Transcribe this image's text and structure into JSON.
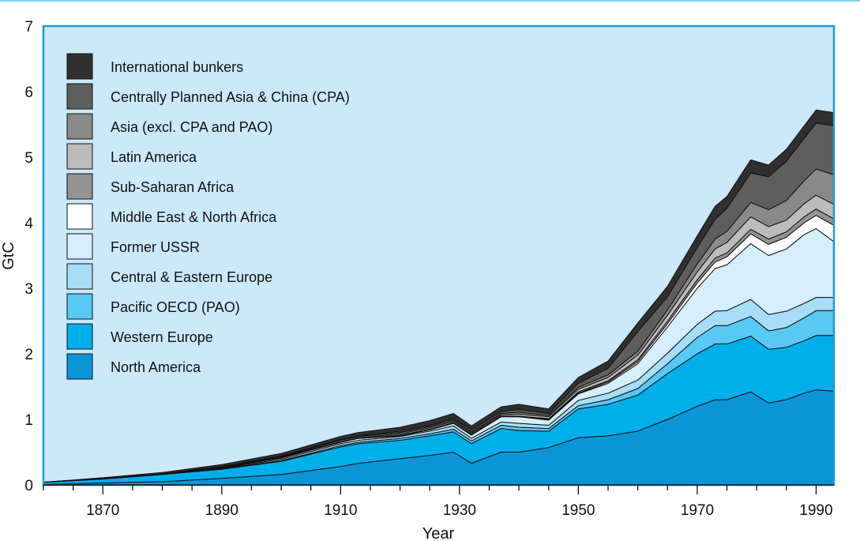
{
  "chart_data": {
    "type": "area",
    "stacked": true,
    "xlabel": "Year",
    "ylabel": "GtC",
    "xlim": [
      1860,
      1993
    ],
    "ylim": [
      0,
      7
    ],
    "x_ticks": [
      1870,
      1890,
      1910,
      1930,
      1950,
      1970,
      1990
    ],
    "y_ticks": [
      0,
      1,
      2,
      3,
      4,
      5,
      6,
      7
    ],
    "grid": false,
    "legend_position": "top-left",
    "legend_order": [
      "International bunkers",
      "Centrally Planned Asia & China (CPA)",
      "Asia (excl. CPA and PAO)",
      "Latin America",
      "Sub-Saharan Africa",
      "Middle East & North Africa",
      "Former USSR",
      "Central & Eastern Europe",
      "Pacific OECD (PAO)",
      "Western Europe",
      "North America"
    ],
    "x": [
      1860,
      1870,
      1880,
      1890,
      1900,
      1910,
      1913,
      1920,
      1925,
      1929,
      1932,
      1937,
      1940,
      1945,
      1950,
      1955,
      1960,
      1965,
      1970,
      1973,
      1975,
      1979,
      1982,
      1985,
      1988,
      1990,
      1993
    ],
    "series": [
      {
        "name": "North America",
        "color": "#0a96d6",
        "values": [
          0.01,
          0.03,
          0.05,
          0.1,
          0.16,
          0.28,
          0.33,
          0.4,
          0.45,
          0.5,
          0.33,
          0.5,
          0.5,
          0.57,
          0.72,
          0.75,
          0.82,
          1.0,
          1.2,
          1.3,
          1.3,
          1.42,
          1.25,
          1.3,
          1.4,
          1.45,
          1.43
        ]
      },
      {
        "name": "Western Europe",
        "color": "#00aeea",
        "values": [
          0.03,
          0.06,
          0.11,
          0.14,
          0.2,
          0.3,
          0.3,
          0.28,
          0.3,
          0.31,
          0.3,
          0.36,
          0.33,
          0.25,
          0.44,
          0.48,
          0.55,
          0.7,
          0.8,
          0.85,
          0.85,
          0.85,
          0.82,
          0.8,
          0.8,
          0.83,
          0.85
        ]
      },
      {
        "name": "Pacific OECD (PAO)",
        "color": "#58c8f5",
        "values": [
          0.0,
          0.0,
          0.0,
          0.01,
          0.01,
          0.02,
          0.02,
          0.03,
          0.03,
          0.04,
          0.04,
          0.05,
          0.05,
          0.04,
          0.05,
          0.07,
          0.1,
          0.15,
          0.25,
          0.28,
          0.28,
          0.3,
          0.28,
          0.3,
          0.35,
          0.38,
          0.38
        ]
      },
      {
        "name": "Central & Eastern Europe",
        "color": "#a8ddf7",
        "values": [
          0.0,
          0.01,
          0.01,
          0.01,
          0.02,
          0.03,
          0.03,
          0.03,
          0.04,
          0.05,
          0.04,
          0.05,
          0.06,
          0.05,
          0.08,
          0.1,
          0.13,
          0.16,
          0.2,
          0.22,
          0.23,
          0.26,
          0.25,
          0.25,
          0.22,
          0.2,
          0.2
        ]
      },
      {
        "name": "Former USSR",
        "color": "#d4eefc",
        "values": [
          0.0,
          0.0,
          0.0,
          0.01,
          0.02,
          0.02,
          0.03,
          0.01,
          0.02,
          0.04,
          0.05,
          0.08,
          0.1,
          0.08,
          0.1,
          0.15,
          0.25,
          0.4,
          0.55,
          0.65,
          0.7,
          0.85,
          0.9,
          0.95,
          1.05,
          1.05,
          0.85
        ]
      },
      {
        "name": "Middle East & North Africa",
        "color": "#ffffff",
        "values": [
          0.0,
          0.0,
          0.0,
          0.0,
          0.0,
          0.0,
          0.0,
          0.0,
          0.0,
          0.0,
          0.0,
          0.0,
          0.0,
          0.01,
          0.01,
          0.02,
          0.03,
          0.05,
          0.08,
          0.1,
          0.12,
          0.15,
          0.17,
          0.18,
          0.18,
          0.2,
          0.25
        ]
      },
      {
        "name": "Sub-Saharan Africa",
        "color": "#939393",
        "values": [
          0.0,
          0.0,
          0.0,
          0.0,
          0.0,
          0.0,
          0.0,
          0.01,
          0.01,
          0.01,
          0.01,
          0.01,
          0.01,
          0.01,
          0.02,
          0.02,
          0.03,
          0.04,
          0.05,
          0.06,
          0.06,
          0.07,
          0.08,
          0.08,
          0.09,
          0.1,
          0.1
        ]
      },
      {
        "name": "Latin America",
        "color": "#bcbcbc",
        "values": [
          0.0,
          0.0,
          0.0,
          0.0,
          0.01,
          0.01,
          0.01,
          0.02,
          0.02,
          0.02,
          0.02,
          0.02,
          0.03,
          0.03,
          0.04,
          0.05,
          0.07,
          0.09,
          0.12,
          0.14,
          0.16,
          0.19,
          0.19,
          0.18,
          0.2,
          0.21,
          0.22
        ]
      },
      {
        "name": "Asia (excl. CPA and PAO)",
        "color": "#898989",
        "values": [
          0.0,
          0.0,
          0.0,
          0.01,
          0.01,
          0.02,
          0.02,
          0.02,
          0.02,
          0.02,
          0.02,
          0.02,
          0.03,
          0.02,
          0.03,
          0.04,
          0.06,
          0.08,
          0.12,
          0.15,
          0.17,
          0.22,
          0.26,
          0.3,
          0.35,
          0.4,
          0.45
        ]
      },
      {
        "name": "Centrally Planned Asia & China (CPA)",
        "color": "#5e5e5e",
        "values": [
          0.0,
          0.0,
          0.0,
          0.0,
          0.01,
          0.01,
          0.01,
          0.02,
          0.02,
          0.02,
          0.03,
          0.03,
          0.04,
          0.03,
          0.06,
          0.1,
          0.3,
          0.2,
          0.25,
          0.3,
          0.35,
          0.45,
          0.5,
          0.6,
          0.65,
          0.7,
          0.75
        ]
      },
      {
        "name": "International bunkers",
        "color": "#303030",
        "values": [
          0.0,
          0.01,
          0.02,
          0.03,
          0.04,
          0.05,
          0.05,
          0.06,
          0.07,
          0.08,
          0.06,
          0.07,
          0.08,
          0.07,
          0.09,
          0.11,
          0.13,
          0.16,
          0.18,
          0.2,
          0.18,
          0.2,
          0.18,
          0.18,
          0.19,
          0.2,
          0.2
        ]
      }
    ]
  }
}
